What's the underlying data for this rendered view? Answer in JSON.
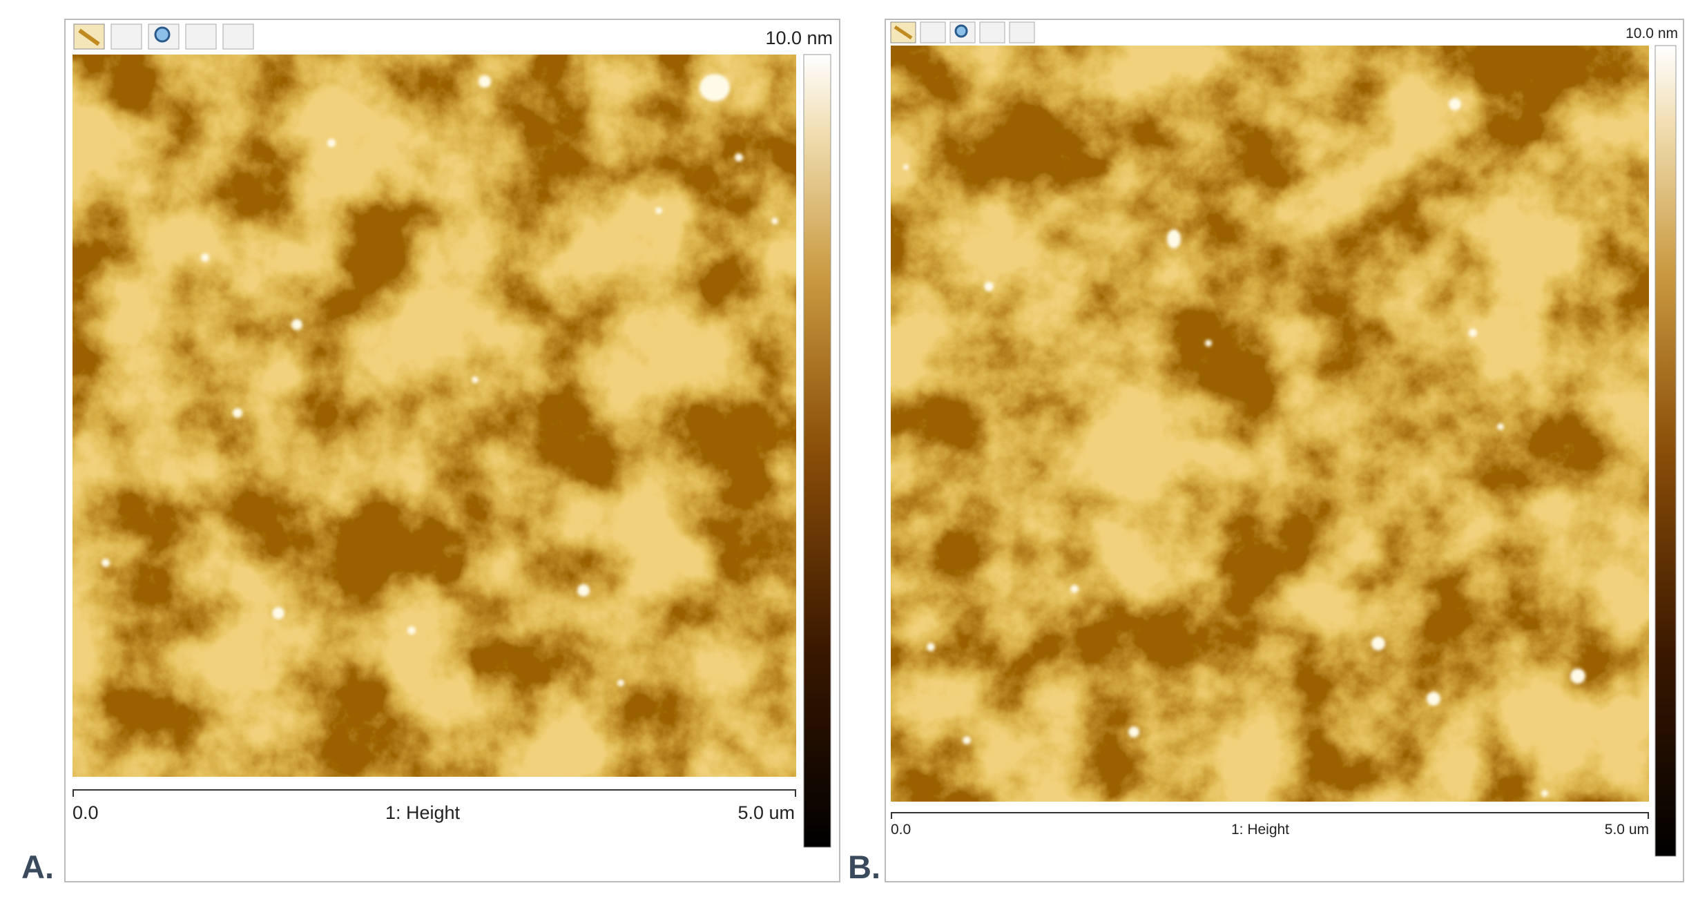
{
  "panels": [
    {
      "label": "A.",
      "scale_max": "10.0 nm",
      "x_start": "0.0",
      "channel": "1: Height",
      "x_end": "5.0 um"
    },
    {
      "label": "B.",
      "scale_max": "10.0 nm",
      "x_start": "0.0",
      "channel": "1: Height",
      "x_end": "5.0 um"
    }
  ]
}
